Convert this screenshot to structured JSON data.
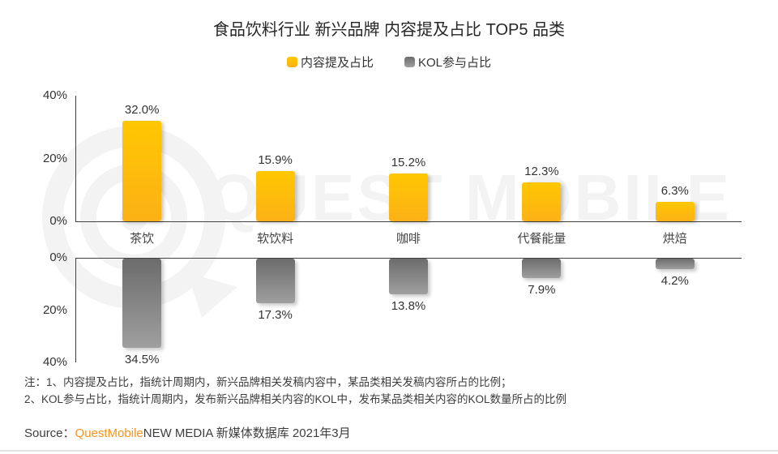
{
  "title": "食品饮料行业 新兴品牌 内容提及占比 TOP5 品类",
  "legend": [
    {
      "label": "内容提及占比",
      "gradient": [
        "#FFC701",
        "#FCB116"
      ]
    },
    {
      "label": "KOL参与占比",
      "gradient": [
        "#6C6C6C",
        "#9F9F9F"
      ]
    }
  ],
  "chart_data": {
    "type": "bar",
    "title": "食品饮料行业 新兴品牌 内容提及占比 TOP5 品类",
    "categories": [
      "茶饮",
      "软饮料",
      "咖啡",
      "代餐能量",
      "烘焙"
    ],
    "series": [
      {
        "name": "内容提及占比",
        "values": [
          32.0,
          15.9,
          15.2,
          12.3,
          6.3
        ],
        "orientation": "up",
        "gradient": [
          "#FFC701",
          "#FCB116"
        ]
      },
      {
        "name": "KOL参与占比",
        "values": [
          34.5,
          17.3,
          13.8,
          7.9,
          4.2
        ],
        "orientation": "down",
        "gradient": [
          "#6C6C6C",
          "#9F9F9F"
        ]
      }
    ],
    "value_suffix": "%",
    "ylim": [
      0,
      40
    ],
    "yticks_top_axis": [
      "40%",
      "20%",
      "0%"
    ],
    "yticks_bottom_axis": [
      "0%",
      "20%",
      "40%"
    ],
    "grid": false,
    "legend_position": "top"
  },
  "watermark": {
    "text": "QUEST MOBILE"
  },
  "notes": [
    "注：1、内容提及占比，指统计周期内，新兴品牌相关发稿内容中，某品类相关发稿内容所占的比例；",
    "2、KOL参与占比，指统计周期内，发布新兴品牌相关内容的KOL中，发布某品类相关内容的KOL数量所占的比例"
  ],
  "source": {
    "label": "Source：",
    "brand": "QuestMobile",
    "rest": "NEW MEDIA 新媒体数据库 2021年3月"
  }
}
